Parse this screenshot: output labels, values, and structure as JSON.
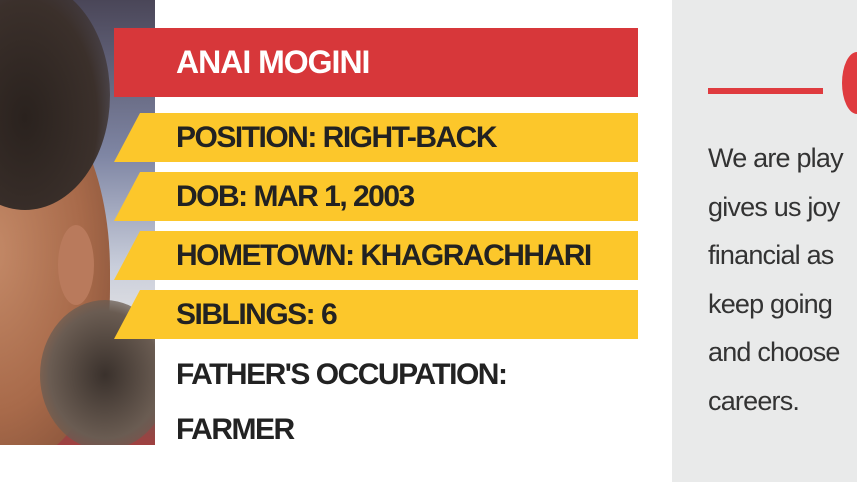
{
  "profile": {
    "name": "ANAI MOGINI",
    "position": "POSITION: RIGHT-BACK",
    "dob": "DOB: MAR 1, 2003",
    "hometown": "HOMETOWN: KHAGRACHHARI",
    "siblings": "SIBLINGS: 6",
    "occupation_line1": "FATHER'S OCCUPATION:",
    "occupation_line2": "FARMER"
  },
  "quote": {
    "lines": [
      "We are play",
      "gives us joy",
      "financial as",
      "keep going",
      "and choose",
      "careers."
    ]
  },
  "colors": {
    "banner": "#d7373a",
    "bars": "#fcc72b",
    "panel": "#e9eaea"
  }
}
